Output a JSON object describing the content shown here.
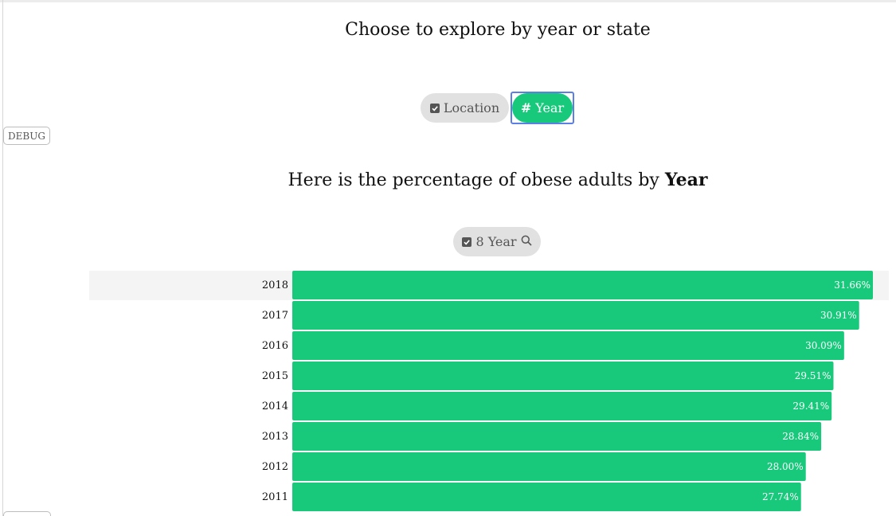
{
  "debug_label": "DEBUG",
  "explore": {
    "title": "Choose to explore by year or state",
    "options": {
      "location": "Location",
      "year": "Year"
    },
    "selected": "Year"
  },
  "result": {
    "heading_prefix": "Here is the percentage of obese adults by",
    "heading_dimension": "Year"
  },
  "filter": {
    "label": "8 Year"
  },
  "colors": {
    "accent": "#18c97c",
    "pill_bg": "#e1e1e1",
    "focus_ring": "#5b7fe6",
    "highlight_row": "#f4f4f4"
  },
  "chart_data": {
    "type": "bar",
    "orientation": "horizontal",
    "categories": [
      "2018",
      "2017",
      "2016",
      "2015",
      "2014",
      "2013",
      "2012",
      "2011"
    ],
    "values": [
      31.66,
      30.91,
      30.09,
      29.51,
      29.41,
      28.84,
      28.0,
      27.74
    ],
    "value_labels": [
      "31.66%",
      "30.91%",
      "30.09%",
      "29.51%",
      "29.41%",
      "28.84%",
      "28.00%",
      "27.74%"
    ],
    "highlighted_category": "2018"
  }
}
